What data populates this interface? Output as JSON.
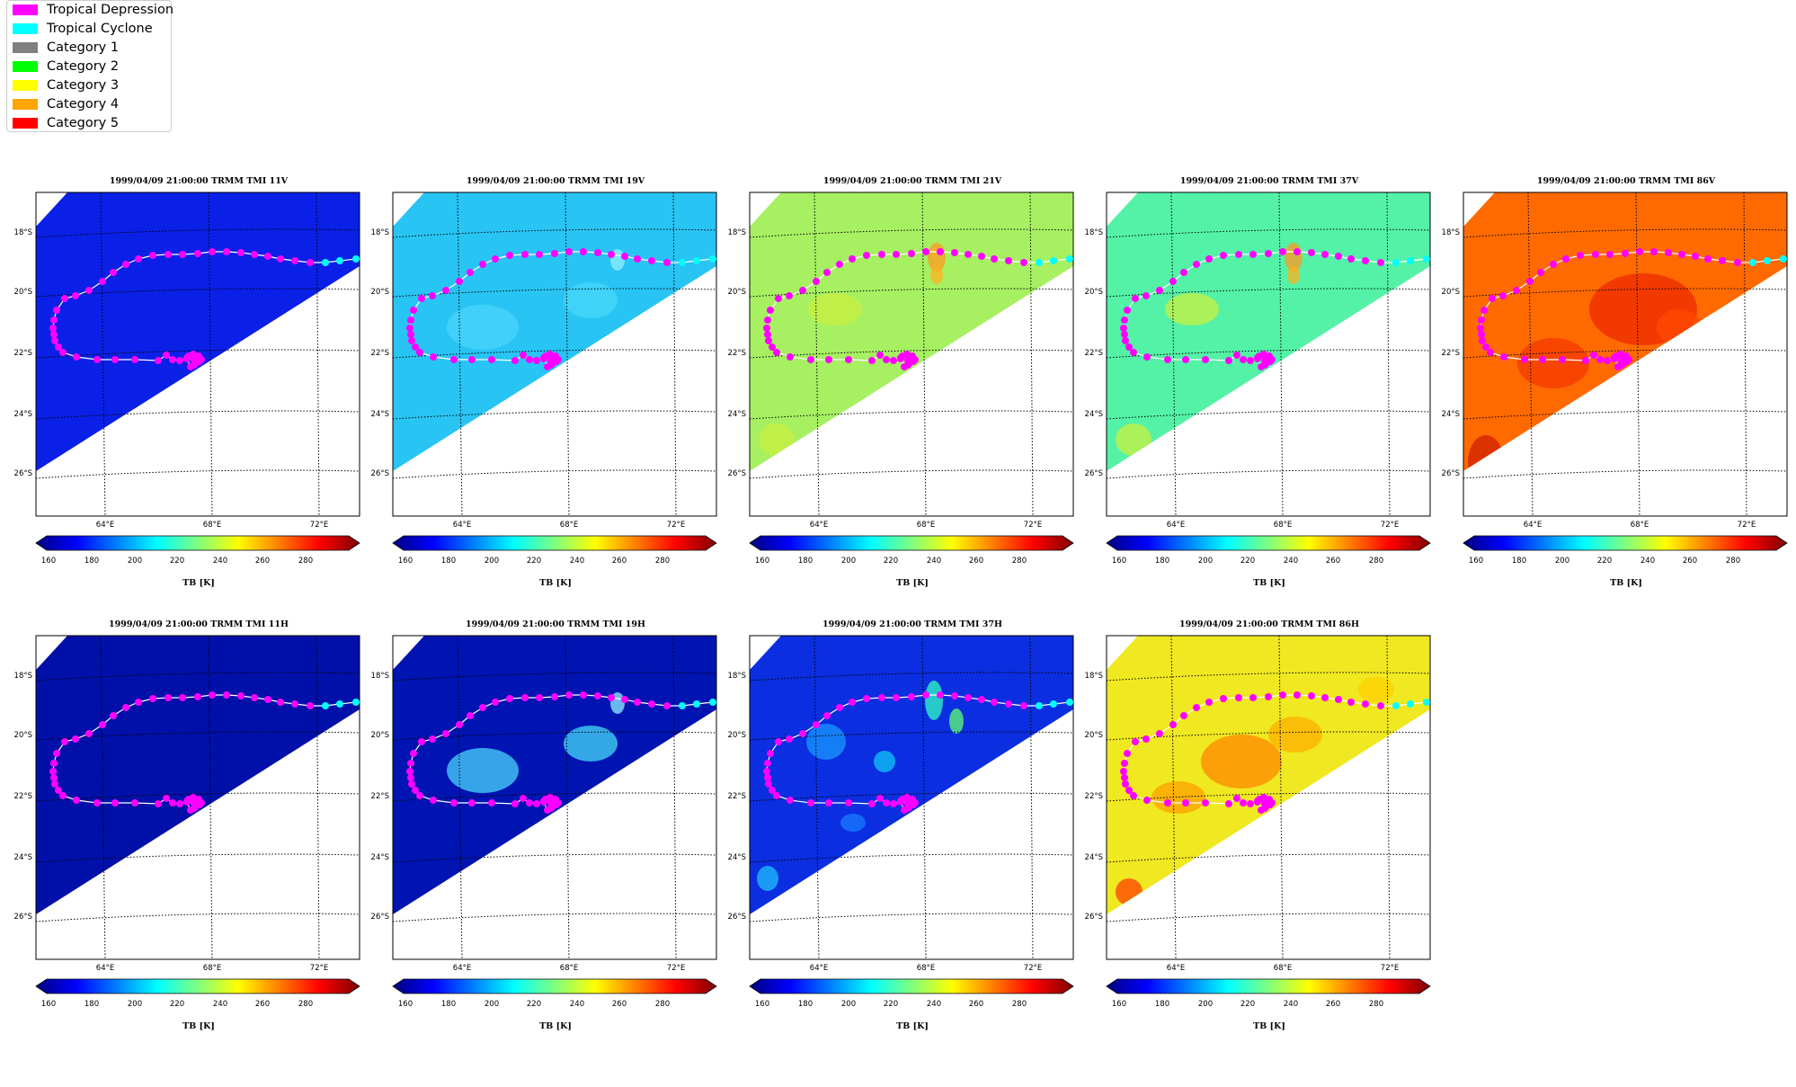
{
  "legend": {
    "items": [
      {
        "label": "Tropical Depression",
        "color": "#ff00ff"
      },
      {
        "label": "Tropical Cyclone",
        "color": "#00ffff"
      },
      {
        "label": "Category 1",
        "color": "#808080"
      },
      {
        "label": "Category 2",
        "color": "#00ff00"
      },
      {
        "label": "Category 3",
        "color": "#ffff00"
      },
      {
        "label": "Category 4",
        "color": "#ffa500"
      },
      {
        "label": "Category 5",
        "color": "#ff0000"
      }
    ]
  },
  "axis": {
    "lat_labels": [
      "18°S",
      "20°S",
      "22°S",
      "24°S",
      "26°S"
    ],
    "lon_labels": [
      "64°E",
      "68°E",
      "72°E"
    ]
  },
  "colorbar": {
    "ticks": [
      "160",
      "180",
      "200",
      "220",
      "240",
      "260",
      "280"
    ],
    "label": "TB [K]"
  },
  "panels": [
    {
      "title": "1999/04/09 21:00:00  TRMM TMI 11V",
      "base": "#0a20e6",
      "var": 0
    },
    {
      "title": "1999/04/09 21:00:00  TRMM TMI 19V",
      "base": "#28c4f4",
      "var": 1
    },
    {
      "title": "1999/04/09 21:00:00  TRMM TMI 21V",
      "base": "#a6f062",
      "var": 2
    },
    {
      "title": "1999/04/09 21:00:00  TRMM TMI 37V",
      "base": "#54f2a6",
      "var": 2
    },
    {
      "title": "1999/04/09 21:00:00  TRMM TMI 86V",
      "base": "#ff6a00",
      "var": 3
    },
    {
      "title": "1999/04/09 21:00:00  TRMM TMI 11H",
      "base": "#0010a8",
      "var": 0
    },
    {
      "title": "1999/04/09 21:00:00  TRMM TMI 19H",
      "base": "#0014b2",
      "var": 1
    },
    {
      "title": "1999/04/09 21:00:00  TRMM TMI 37H",
      "base": "#0a2ee0",
      "var": 4
    },
    {
      "title": "1999/04/09 21:00:00  TRMM TMI 86H",
      "base": "#f0e820",
      "var": 5
    }
  ]
}
